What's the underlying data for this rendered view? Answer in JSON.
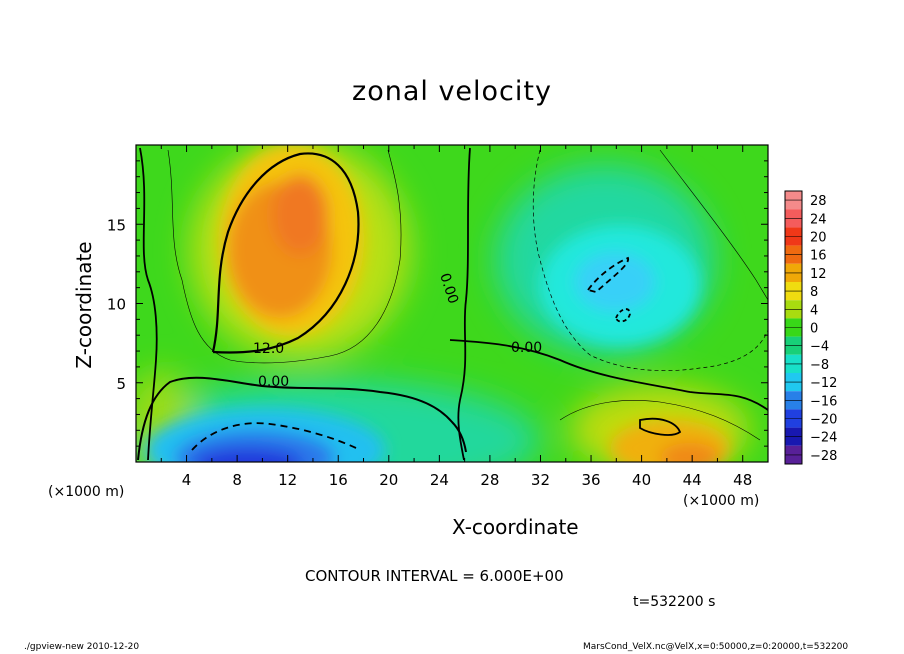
{
  "chart_data": {
    "type": "contour",
    "title": "zonal velocity",
    "xlabel": "X-coordinate",
    "ylabel": "Z-coordinate",
    "x_unit_label": "(×1000 m)",
    "x_ticks": [
      4,
      8,
      12,
      16,
      20,
      24,
      28,
      32,
      36,
      40,
      44,
      48
    ],
    "y_ticks": [
      5,
      10,
      15
    ],
    "xlim": [
      0,
      50
    ],
    "ylim": [
      0,
      20
    ],
    "colorbar": {
      "levels": [
        28,
        24,
        20,
        16,
        12,
        8,
        4,
        0,
        -4,
        -8,
        -12,
        -16,
        -20,
        -24,
        -28
      ],
      "labels": [
        "28",
        "24",
        "20",
        "16",
        "12",
        "8",
        "4",
        "0",
        "−4",
        "−8",
        "−12",
        "−16",
        "−20",
        "−24",
        "−28"
      ],
      "colors": [
        "#f48a8a",
        "#f45c5c",
        "#f03818",
        "#f06a10",
        "#f0a808",
        "#f0dc10",
        "#a8dc10",
        "#38d818",
        "#18d078",
        "#18e0c8",
        "#20c8f0",
        "#2880e8",
        "#2040e0",
        "#1818b0",
        "#582098"
      ]
    },
    "contour_labels": [
      "12.0",
      "0.00",
      "0.00",
      "0.00"
    ],
    "regions": [
      {
        "name": "positive-core",
        "x": 12,
        "z": 13,
        "value": 17
      },
      {
        "name": "negative-core-bottom",
        "x": 12,
        "z": 1,
        "value": -20
      },
      {
        "name": "negative-core-right",
        "x": 38,
        "z": 12,
        "value": -10
      },
      {
        "name": "positive-core-bottom-right",
        "x": 44,
        "z": 1.5,
        "value": 15
      }
    ]
  },
  "contour_interval_text": "CONTOUR INTERVAL = 6.000E+00",
  "time_text": "t=532200 s",
  "footer_left": "./gpview-new  2010-12-20",
  "footer_right": "MarsCond_VelX.nc@VelX,x=0:50000,z=0:20000,t=532200"
}
